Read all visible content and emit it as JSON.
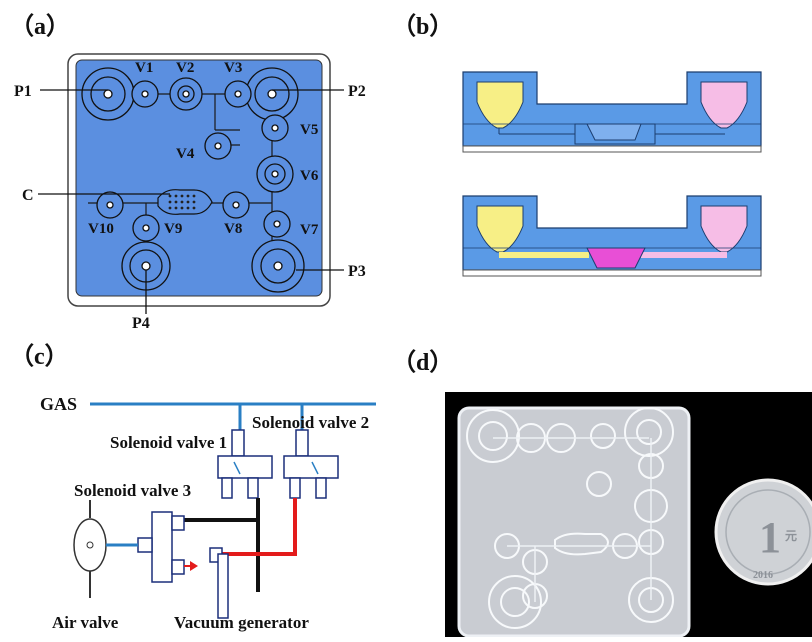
{
  "panels": {
    "a": "（a）",
    "b": "（b）",
    "c": "（c）",
    "d": "（d）"
  },
  "chip_a": {
    "ports": {
      "p1": "P1",
      "p2": "P2",
      "p3": "P3",
      "p4": "P4"
    },
    "valves": {
      "v1": "V1",
      "v2": "V2",
      "v3": "V3",
      "v4": "V4",
      "v5": "V5",
      "v6": "V6",
      "v7": "V7",
      "v8": "V8",
      "v9": "V9",
      "v10": "V10"
    },
    "chamber": "C"
  },
  "system_c": {
    "gas": "GAS",
    "solenoid1": "Solenoid valve 1",
    "solenoid2": "Solenoid valve 2",
    "solenoid3": "Solenoid valve 3",
    "air_valve": "Air valve",
    "vacuum": "Vacuum generator"
  },
  "photo_d": {
    "coin_value": "1",
    "coin_char": "元",
    "coin_year": "2016"
  },
  "colors": {
    "chip_blue": "#5b8fe0",
    "section_blue": "#5a9ae6",
    "yellow": "#f7ef86",
    "pink": "#f6bde6",
    "magenta": "#e84fd6",
    "gas_line": "#2a7fc4",
    "vacuum_line": "#e31b1b"
  }
}
